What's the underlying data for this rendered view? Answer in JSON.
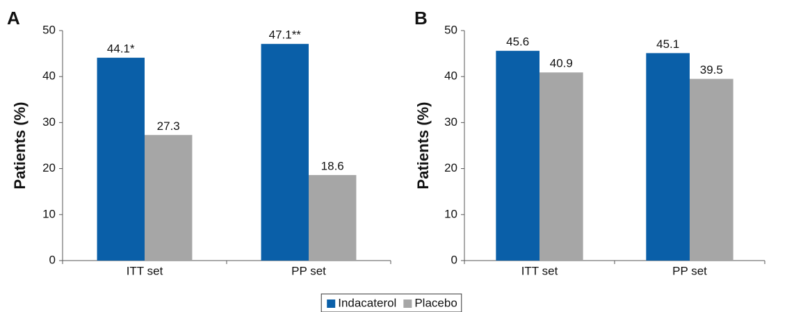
{
  "chart_data": [
    {
      "type": "bar",
      "panel": "A",
      "ylabel": "Patients (%)",
      "categories": [
        "ITT set",
        "PP set"
      ],
      "series": [
        {
          "color": "#0a5fa8",
          "values": [
            44.1,
            47.1
          ],
          "value_labels": [
            "44.1*",
            "47.1**"
          ]
        },
        {
          "color": "#a6a6a6",
          "values": [
            27.3,
            18.6
          ]
        }
      ],
      "ylim": [
        0,
        50
      ],
      "yticks": [
        0,
        10,
        20,
        30,
        40,
        50
      ]
    },
    {
      "type": "bar",
      "panel": "B",
      "ylabel": "Patients (%)",
      "categories": [
        "ITT set",
        "PP set"
      ],
      "series": [
        {
          "color": "#0a5fa8",
          "values": [
            45.6,
            45.1
          ]
        },
        {
          "color": "#a6a6a6",
          "values": [
            40.9,
            39.5
          ]
        }
      ],
      "ylim": [
        0,
        50
      ],
      "yticks": [
        0,
        10,
        20,
        30,
        40,
        50
      ]
    }
  ],
  "legend": {
    "position": "bottom",
    "items": [
      {
        "name": "Indacaterol",
        "color": "#0a5fa8"
      },
      {
        "name": "Placebo",
        "color": "#a6a6a6"
      }
    ]
  }
}
